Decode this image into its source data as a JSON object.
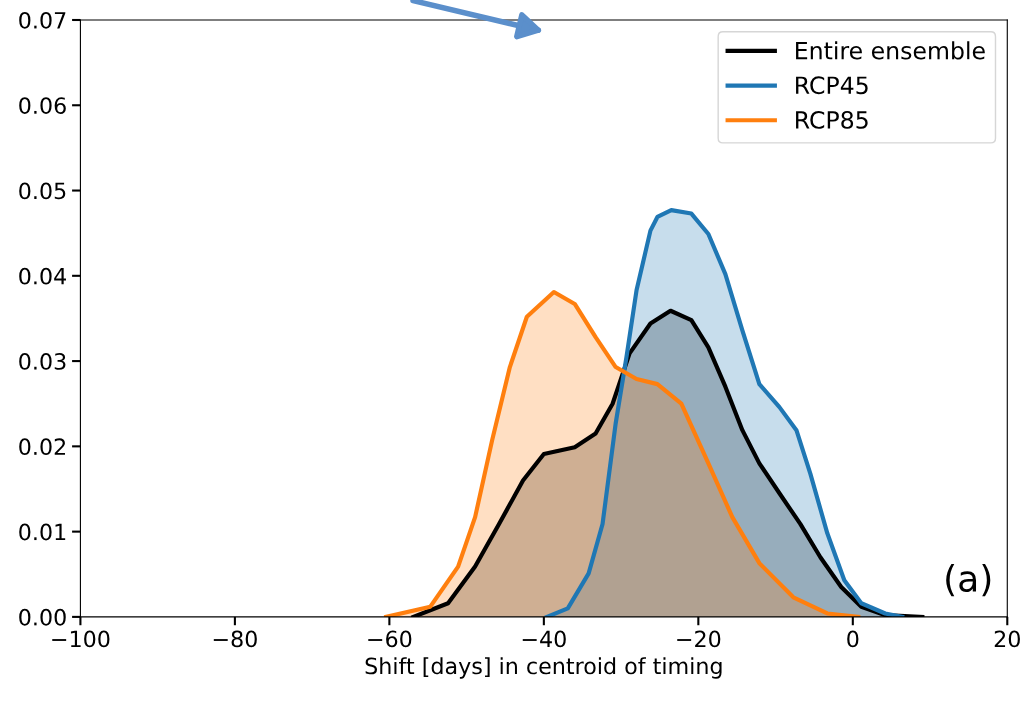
{
  "chart_data": {
    "type": "area",
    "xlabel": "Shift [days] in centroid of timing",
    "xlim": [
      -100,
      20
    ],
    "xticks": [
      {
        "value": -100,
        "label": "−100"
      },
      {
        "value": -80,
        "label": "−80"
      },
      {
        "value": -60,
        "label": "−60"
      },
      {
        "value": -40,
        "label": "−40"
      },
      {
        "value": -20,
        "label": "−20"
      },
      0,
      20
    ],
    "ylim": [
      0,
      0.07
    ],
    "yticks": [
      {
        "value": 0,
        "label": "0.00"
      },
      {
        "value": 0.01,
        "label": "0.01"
      },
      {
        "value": 0.02,
        "label": "0.02"
      },
      {
        "value": 0.03,
        "label": "0.03"
      },
      {
        "value": 0.04,
        "label": "0.04"
      },
      {
        "value": 0.05,
        "label": "0.05"
      },
      {
        "value": 0.06,
        "label": "0.06"
      },
      {
        "value": 0.07,
        "label": "0.07"
      }
    ],
    "legend": "top right",
    "grid": false,
    "annotations": [
      "(a)"
    ],
    "series": [
      {
        "name": "Entire ensemble",
        "color": "#000000",
        "x": [
          -56.9,
          -52.4,
          -48.9,
          -45.8,
          -42.7,
          -40,
          -36,
          -33.3,
          -31.1,
          -28.9,
          -26.2,
          -23.6,
          -20.9,
          -18.7,
          -16.5,
          -14.3,
          -12.1,
          -9.5,
          -6.8,
          -4.2,
          -1.5,
          1.1,
          4.2,
          9
        ],
        "values": [
          0,
          0.0016,
          0.0059,
          0.0109,
          0.016,
          0.0191,
          0.0199,
          0.0215,
          0.025,
          0.0309,
          0.0344,
          0.0359,
          0.0348,
          0.0316,
          0.027,
          0.0219,
          0.018,
          0.0145,
          0.0109,
          0.007,
          0.0035,
          0.0012,
          0.0002,
          0
        ]
      },
      {
        "name": "RCP45",
        "color": "#1f77b4",
        "x": [
          -39.6,
          -36.9,
          -34.2,
          -32.4,
          -30.7,
          -29.3,
          -28,
          -26.2,
          -25.3,
          -23.5,
          -20.9,
          -18.7,
          -16.5,
          -14.3,
          -12.1,
          -9.5,
          -7.3,
          -5.5,
          -3.3,
          -1.1,
          1.1,
          4.2,
          6.4
        ],
        "values": [
          0,
          0.001,
          0.0051,
          0.0109,
          0.0227,
          0.0305,
          0.0383,
          0.0453,
          0.0469,
          0.0477,
          0.0473,
          0.0449,
          0.0402,
          0.0336,
          0.0273,
          0.0246,
          0.0219,
          0.0168,
          0.0098,
          0.0043,
          0.0016,
          0.0004,
          0
        ]
      },
      {
        "name": "RCP85",
        "color": "#ff7f0e",
        "x": [
          -60.4,
          -54.7,
          -51.1,
          -48.9,
          -46.7,
          -44.4,
          -42.2,
          -38.7,
          -36,
          -33.3,
          -30.7,
          -28,
          -25.3,
          -22.2,
          -18.7,
          -15.6,
          -12.1,
          -7.7,
          -3.3,
          0.7
        ],
        "values": [
          0,
          0.0012,
          0.0059,
          0.0117,
          0.0207,
          0.0293,
          0.0352,
          0.0381,
          0.0367,
          0.0328,
          0.0293,
          0.0279,
          0.0273,
          0.025,
          0.018,
          0.0117,
          0.0063,
          0.0023,
          0.0004,
          0
        ]
      }
    ]
  }
}
